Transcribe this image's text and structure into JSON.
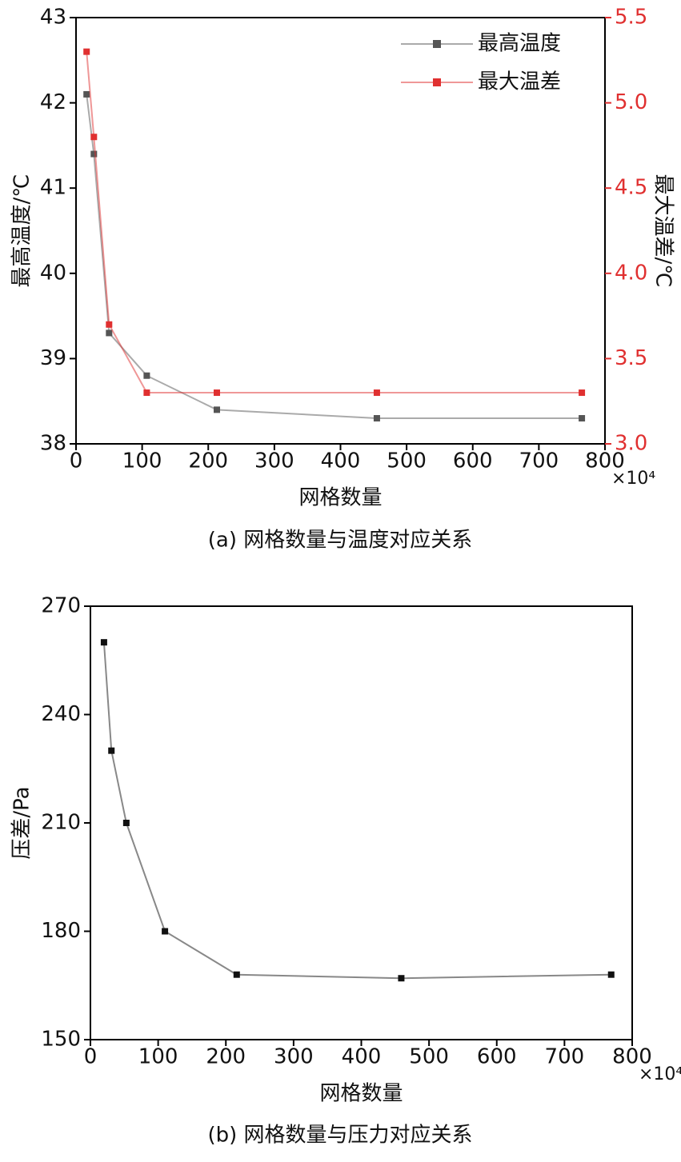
{
  "chart_data": [
    {
      "type": "line",
      "caption": "(a) 网格数量与温度对应关系",
      "xlabel": "网格数量",
      "x_multiplier": "×10⁴",
      "ylabel": "最高温度/℃",
      "y2label": "最大温差/℃",
      "x": [
        16,
        27,
        50,
        107,
        213,
        455,
        765
      ],
      "xlim": [
        0,
        800
      ],
      "xticks": [
        0,
        100,
        200,
        300,
        400,
        500,
        600,
        700,
        800
      ],
      "ylim": [
        38,
        43
      ],
      "yticks": [
        38,
        39,
        40,
        41,
        42,
        43
      ],
      "y2lim": [
        3.0,
        5.5
      ],
      "y2ticks": [
        {
          "value": 3.0,
          "label": "3.0"
        },
        3.5,
        {
          "value": 4.0,
          "label": "4.0"
        },
        4.5,
        {
          "value": 5.0,
          "label": "5.0"
        },
        5.5
      ],
      "legend": "upper right",
      "series": [
        {
          "name": "最高温度",
          "color": "#555555",
          "values": [
            42.1,
            41.4,
            39.3,
            38.8,
            38.4,
            38.3,
            38.3
          ]
        },
        {
          "name": "最大温差",
          "color": "#e03030",
          "axis": "y2",
          "values": [
            5.3,
            4.8,
            3.7,
            3.3,
            3.3,
            3.3,
            3.3
          ]
        }
      ]
    },
    {
      "type": "line",
      "caption": "(b) 网格数量与压力对应关系",
      "xlabel": "网格数量",
      "x_multiplier": "×10⁴",
      "ylabel": "压差/Pa",
      "x": [
        20,
        31,
        53,
        110,
        216,
        459,
        769
      ],
      "xlim": [
        0,
        800
      ],
      "xticks": [
        0,
        100,
        200,
        300,
        400,
        500,
        600,
        700,
        800
      ],
      "ylim": [
        150,
        270
      ],
      "yticks": [
        150,
        180,
        210,
        240,
        270
      ],
      "color": "#111111",
      "values": [
        260,
        230,
        210,
        180,
        168,
        167,
        168
      ]
    }
  ]
}
